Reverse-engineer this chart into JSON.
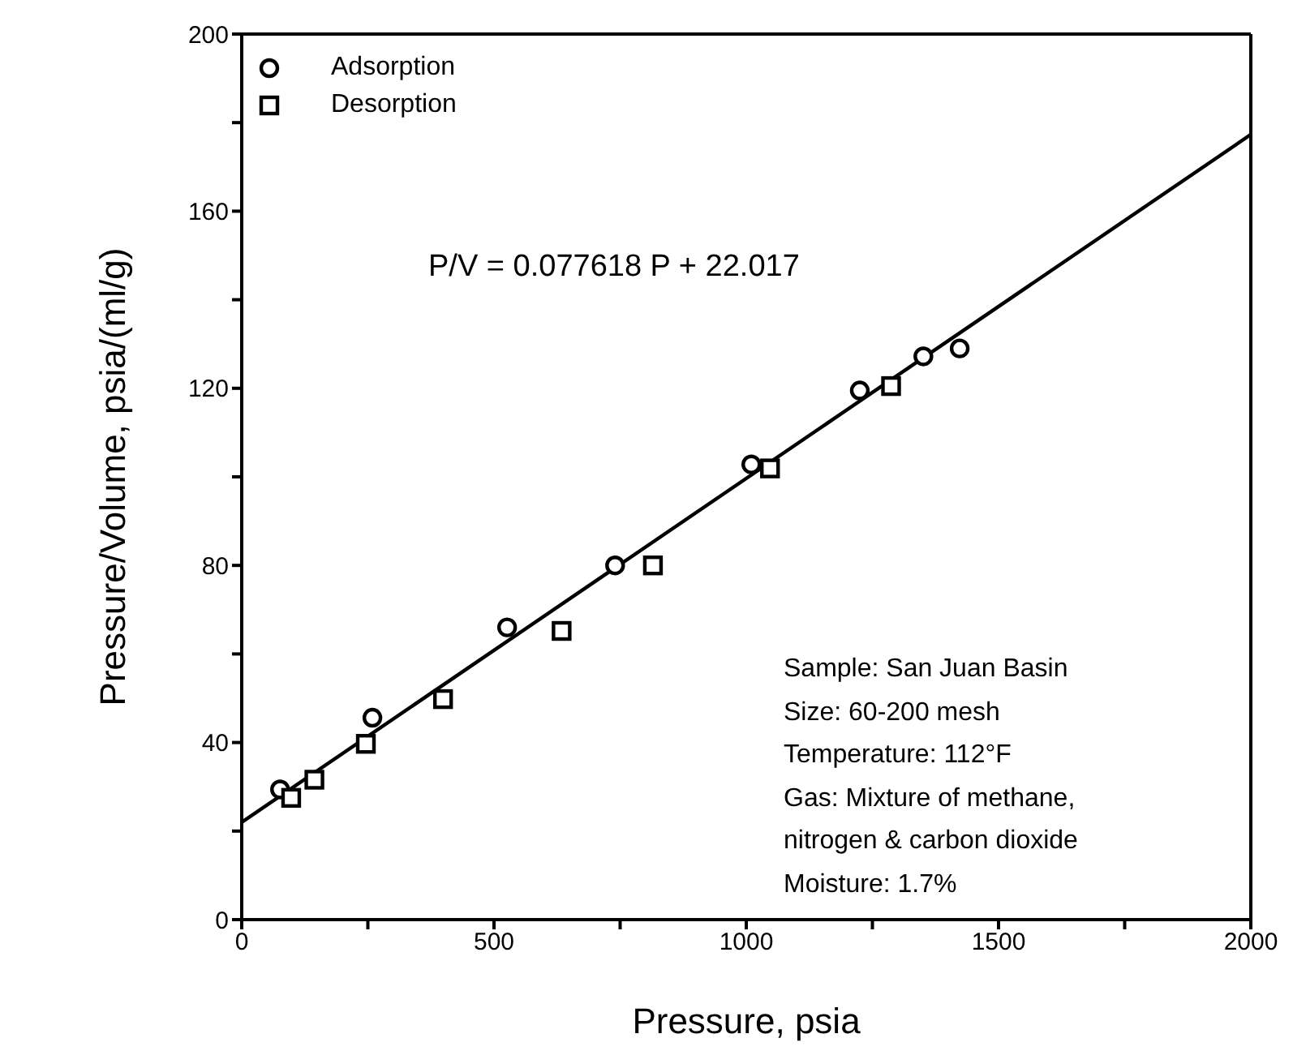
{
  "chart_data": {
    "type": "scatter",
    "xlabel": "Pressure, psia",
    "ylabel": "Pressure/Volume, psia/(ml/g)",
    "xlim": [
      0,
      2000
    ],
    "ylim": [
      0,
      200
    ],
    "xticks": [
      0,
      {
        "value": 250,
        "label": null
      },
      500,
      {
        "value": 750,
        "label": null
      },
      1000,
      {
        "value": 1250,
        "label": null
      },
      1500,
      {
        "value": 1750,
        "label": null
      },
      2000
    ],
    "yticks": [
      0,
      {
        "value": 20,
        "label": null
      },
      40,
      {
        "value": 60,
        "label": null
      },
      80,
      {
        "value": 100,
        "label": null
      },
      120,
      {
        "value": 140,
        "label": null
      },
      160,
      {
        "value": 180,
        "label": null
      },
      200
    ],
    "grid": false,
    "legend": "top left",
    "series": [
      {
        "name": "Adsorption",
        "marker": "circle",
        "color": "#000000",
        "x": [
          76,
          259,
          526,
          740,
          1010,
          1225,
          1351,
          1423
        ],
        "values": [
          29.4,
          45.6,
          66,
          80,
          102.8,
          119.5,
          127.2,
          129
        ]
      },
      {
        "name": "Desorption",
        "marker": "square",
        "color": "#000000",
        "x": [
          98,
          144,
          246,
          399,
          634,
          815,
          1047,
          1287
        ],
        "values": [
          27.5,
          31.6,
          39.7,
          49.8,
          65.2,
          80,
          101.9,
          120.5
        ]
      },
      {
        "type": "line",
        "marker": "none",
        "line_style": "solid",
        "color": "#000000",
        "x": [
          0,
          2000
        ],
        "values": [
          22.0,
          177.3
        ]
      }
    ],
    "annotations": [
      "P/V = 0.077618 P + 22.017",
      "Sample: San Juan Basin",
      "Size: 60-200 mesh",
      "Temperature: 112°F",
      "Gas: Mixture of methane,",
      "nitrogen & carbon dioxide",
      "Moisture: 1.7%"
    ]
  }
}
